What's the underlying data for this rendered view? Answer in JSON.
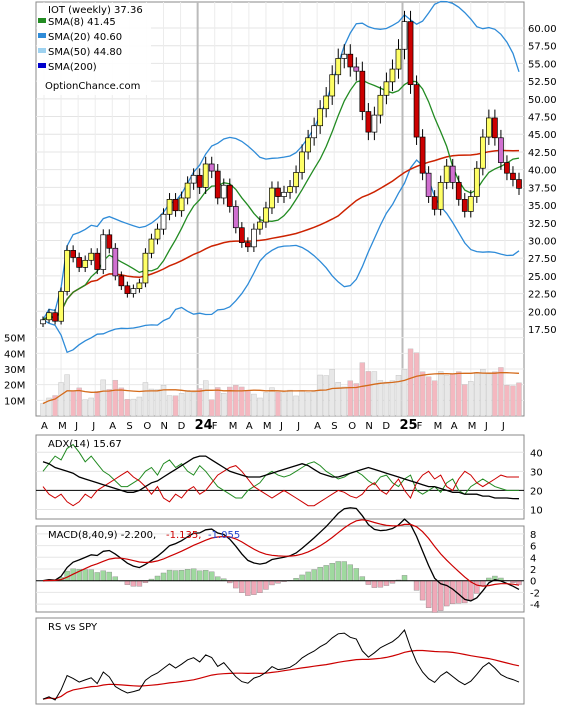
{
  "chart_data": {
    "type": "candlestick",
    "title": "IOT (weekly) 37.36",
    "watermark": "OptionChance.com",
    "x_labels": [
      "A",
      "M",
      "J",
      "J",
      "A",
      "S",
      "O",
      "N",
      "D",
      "24",
      "F",
      "M",
      "A",
      "M",
      "J",
      "J",
      "A",
      "S",
      "O",
      "N",
      "D",
      "25",
      "F",
      "M",
      "A",
      "M",
      "J",
      "J"
    ],
    "year_labels": [
      "24",
      "25"
    ],
    "price_axis": {
      "ylim": [
        15,
        63
      ],
      "ticks": [
        "17.50",
        "20.00",
        "22.50",
        "25.00",
        "27.50",
        "30.00",
        "32.50",
        "35.00",
        "37.50",
        "40.00",
        "42.50",
        "45.00",
        "47.50",
        "50.00",
        "52.50",
        "55.00",
        "57.50",
        "60.00"
      ]
    },
    "volume_axis": {
      "ylim": [
        0,
        60
      ],
      "ticks": [
        "10M",
        "20M",
        "30M",
        "40M",
        "50M"
      ]
    },
    "legend": [
      {
        "label": "SMA(8) 41.45",
        "color": "#228b22"
      },
      {
        "label": "SMA(20) 40.60",
        "color": "#2e8bd8"
      },
      {
        "label": "SMA(50) 44.80",
        "color": "#9ed2f0"
      },
      {
        "label": "SMA(200)",
        "color": "#0000cc"
      }
    ],
    "colors": {
      "up": "#ffff66",
      "up_alt": "#ffffff",
      "down": "#cc0000",
      "down_alt": "#d070d0",
      "sma8": "#228b22",
      "bb": "#2e8bd8",
      "sma50": "#cc2200",
      "vol_up": "#e8e8e8",
      "vol_down": "#f4b8c0",
      "vol_ma": "#d46a1a"
    },
    "price_close": [
      18.8,
      19.8,
      18.6,
      22.8,
      28.6,
      27.6,
      26.2,
      27.2,
      28.2,
      25.9,
      30.8,
      28.9,
      25.0,
      23.6,
      22.5,
      23.2,
      24.0,
      28.2,
      30.2,
      31.6,
      33.7,
      35.8,
      34.2,
      36.0,
      38.1,
      39.2,
      37.5,
      40.8,
      39.8,
      36.0,
      37.8,
      34.8,
      31.8,
      29.7,
      29.1,
      31.6,
      32.6,
      34.6,
      37.4,
      36.2,
      36.8,
      37.6,
      39.6,
      42.5,
      44.5,
      46.2,
      48.6,
      50.4,
      53.4,
      55.7,
      56.3,
      54.5,
      53.9,
      48.2,
      45.3,
      47.7,
      50.5,
      52.4,
      54.2,
      57.0,
      60.9,
      52.0,
      44.6,
      39.5,
      36.2,
      34.4,
      38.2,
      40.5,
      38.2,
      35.8,
      34.1,
      36.2,
      40.2,
      44.6,
      47.3,
      44.5,
      41.0,
      39.5,
      38.6,
      37.36
    ],
    "adx": {
      "title": "ADX(14) 15.67",
      "ticks": [
        "10",
        "20",
        "30",
        "40"
      ],
      "ylim": [
        5,
        48
      ],
      "adx": [
        35,
        34,
        32,
        31,
        30,
        29,
        27,
        26,
        25,
        24,
        23,
        22,
        21,
        20,
        19,
        19,
        20,
        22,
        24,
        25,
        27,
        29,
        31,
        33,
        35,
        37,
        38,
        38,
        36,
        34,
        32,
        30,
        29,
        28,
        27,
        27,
        27,
        28,
        29,
        30,
        31,
        32,
        33,
        34,
        33,
        31,
        29,
        28,
        27,
        27,
        28,
        29,
        30,
        31,
        32,
        31,
        30,
        29,
        28,
        27,
        26,
        25,
        24,
        23,
        22,
        22,
        21,
        20,
        19,
        19,
        18,
        18,
        18,
        17,
        17,
        16,
        16,
        16,
        15.7,
        15.67
      ],
      "plus_di": [
        30,
        34,
        38,
        36,
        42,
        44,
        40,
        35,
        38,
        34,
        30,
        28,
        25,
        22,
        22,
        24,
        26,
        30,
        32,
        28,
        34,
        36,
        32,
        34,
        30,
        28,
        33,
        30,
        26,
        22,
        20,
        18,
        16,
        16,
        20,
        22,
        24,
        28,
        30,
        28,
        27,
        28,
        30,
        32,
        34,
        35,
        33,
        30,
        28,
        26,
        27,
        29,
        30,
        28,
        25,
        23,
        27,
        28,
        24,
        22,
        26,
        28,
        20,
        18,
        20,
        22,
        19,
        24,
        26,
        20,
        18,
        22,
        24,
        26,
        24,
        22,
        21,
        20,
        20,
        20
      ],
      "minus_di": [
        22,
        18,
        16,
        18,
        14,
        12,
        14,
        18,
        16,
        20,
        22,
        24,
        26,
        28,
        30,
        27,
        25,
        22,
        18,
        22,
        16,
        14,
        18,
        16,
        20,
        22,
        18,
        20,
        24,
        28,
        30,
        32,
        33,
        30,
        26,
        22,
        20,
        18,
        16,
        18,
        20,
        18,
        16,
        14,
        12,
        12,
        14,
        16,
        18,
        20,
        19,
        17,
        16,
        18,
        22,
        24,
        20,
        18,
        22,
        26,
        20,
        16,
        24,
        28,
        30,
        26,
        28,
        22,
        20,
        26,
        30,
        28,
        24,
        22,
        24,
        26,
        28,
        27,
        27,
        27
      ]
    },
    "macd": {
      "title": "MACD(8,40,9) -2.200,",
      "signal_label": "-1.135,",
      "hist_label": "-1.055",
      "ticks": [
        "-4",
        "-2",
        "0",
        "2",
        "4",
        "6",
        "8"
      ],
      "ylim": [
        -5,
        9
      ]
    },
    "rs": {
      "title": "RS vs SPY"
    }
  }
}
